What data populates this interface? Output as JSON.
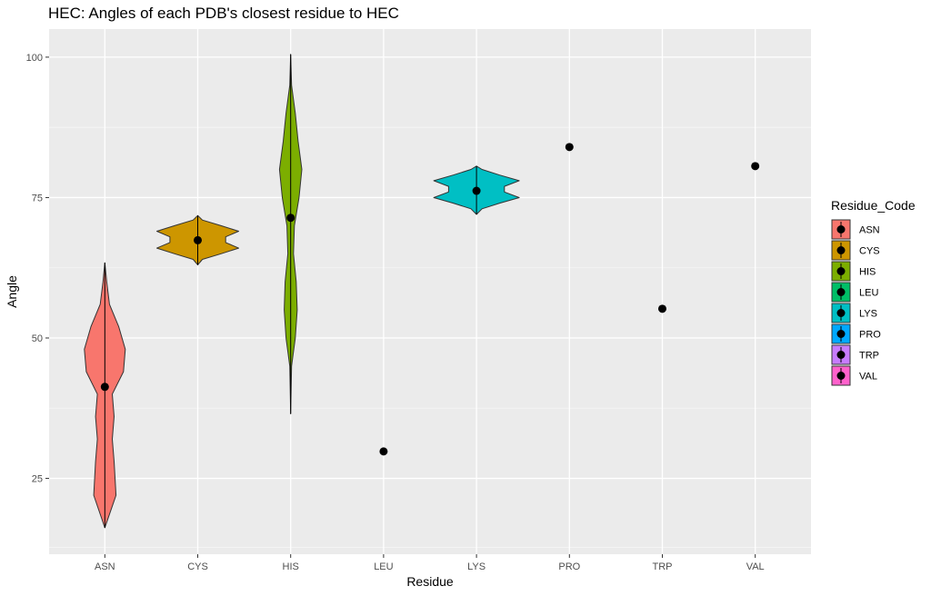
{
  "chart_data": {
    "type": "violin",
    "title": "HEC: Angles of each PDB's closest residue to HEC",
    "xlabel": "Residue",
    "ylabel": "Angle",
    "categories": [
      "ASN",
      "CYS",
      "HIS",
      "LEU",
      "LYS",
      "PRO",
      "TRP",
      "VAL"
    ],
    "ylim": [
      11.5,
      105
    ],
    "yticks": [
      25,
      50,
      75,
      100
    ],
    "grid": true,
    "legend": {
      "title": "Residue_Code",
      "position": "right",
      "entries": [
        "ASN",
        "CYS",
        "HIS",
        "LEU",
        "LYS",
        "PRO",
        "TRP",
        "VAL"
      ]
    },
    "colors": {
      "ASN": "#F8766D",
      "CYS": "#CD9600",
      "HIS": "#7CAE00",
      "LEU": "#00BE67",
      "LYS": "#00BFC4",
      "PRO": "#00A9FF",
      "TRP": "#C77CFF",
      "VAL": "#FF61CC"
    },
    "means": {
      "ASN": 41.3,
      "CYS": 67.4,
      "HIS": 71.4,
      "LEU": 29.8,
      "LYS": 76.2,
      "PRO": 84.0,
      "TRP": 55.2,
      "VAL": 80.6
    },
    "violins": {
      "ASN": {
        "y": [
          16.2,
          22,
          28,
          32,
          36,
          40,
          44,
          48,
          52,
          56,
          60,
          63.4
        ],
        "w": [
          0.0,
          0.12,
          0.1,
          0.08,
          0.1,
          0.08,
          0.2,
          0.22,
          0.15,
          0.05,
          0.02,
          0.0
        ]
      },
      "CYS": {
        "y": [
          63,
          64,
          65,
          66,
          67,
          68,
          69,
          70,
          71,
          71.8
        ],
        "w": [
          0.0,
          0.05,
          0.25,
          0.44,
          0.3,
          0.3,
          0.44,
          0.25,
          0.05,
          0.0
        ]
      },
      "HIS": {
        "y": [
          36.5,
          45,
          50,
          55,
          60,
          65,
          70,
          75,
          80,
          85,
          90,
          95,
          100.5
        ],
        "w": [
          0.0,
          0.01,
          0.05,
          0.07,
          0.06,
          0.03,
          0.04,
          0.09,
          0.12,
          0.08,
          0.05,
          0.01,
          0.0
        ]
      },
      "LYS": {
        "y": [
          72,
          73,
          74,
          75,
          76,
          77,
          78,
          79,
          80,
          80.6
        ],
        "w": [
          0.0,
          0.06,
          0.25,
          0.46,
          0.3,
          0.3,
          0.46,
          0.25,
          0.06,
          0.0
        ]
      }
    }
  }
}
